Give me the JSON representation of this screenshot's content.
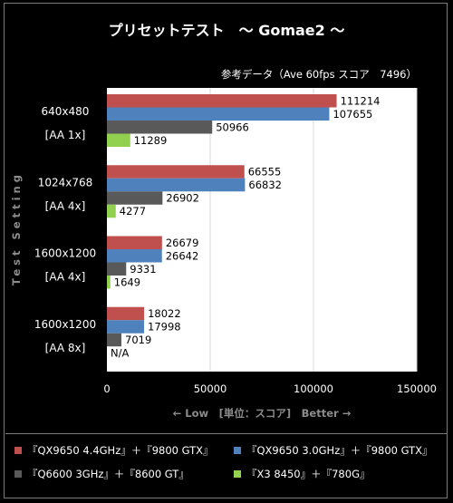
{
  "chart_data": {
    "type": "bar",
    "orientation": "horizontal",
    "title": "プリセットテスト　～ Gomae2 ～",
    "subtitle": "参考データ（Ave 60fps スコア　7496）",
    "xlabel": "← Low　[単位：スコア]　Better →",
    "ylabel": "Test Setting",
    "xlim": [
      0,
      150000
    ],
    "xticks": [
      0,
      50000,
      100000,
      150000
    ],
    "grid": true,
    "legend_position": "bottom",
    "categories": [
      [
        "640x480",
        "[AA 1x]"
      ],
      [
        "1024x768",
        "[AA 4x]"
      ],
      [
        "1600x1200",
        "[AA 4x]"
      ],
      [
        "1600x1200",
        "[AA 8x]"
      ]
    ],
    "series": [
      {
        "name": "『QX9650 4.4GHz』＋『9800 GTX』",
        "color": "#c0504d",
        "values": [
          111214,
          66555,
          26679,
          18022
        ],
        "labels": [
          "111214",
          "66555",
          "26679",
          "18022"
        ]
      },
      {
        "name": "『QX9650 3.0GHz』＋『9800 GTX』",
        "color": "#4f81bd",
        "values": [
          107655,
          66832,
          26642,
          17998
        ],
        "labels": [
          "107655",
          "66832",
          "26642",
          "17998"
        ]
      },
      {
        "name": "『Q6600 3GHz』＋『8600 GT』",
        "color": "#595959",
        "values": [
          50966,
          26902,
          9331,
          7019
        ],
        "labels": [
          "50966",
          "26902",
          "9331",
          "7019"
        ]
      },
      {
        "name": "『X3 8450』＋『780G』",
        "color": "#92d050",
        "values": [
          11289,
          4277,
          1649,
          null
        ],
        "labels": [
          "11289",
          "4277",
          "1649",
          "N/A"
        ]
      }
    ]
  }
}
